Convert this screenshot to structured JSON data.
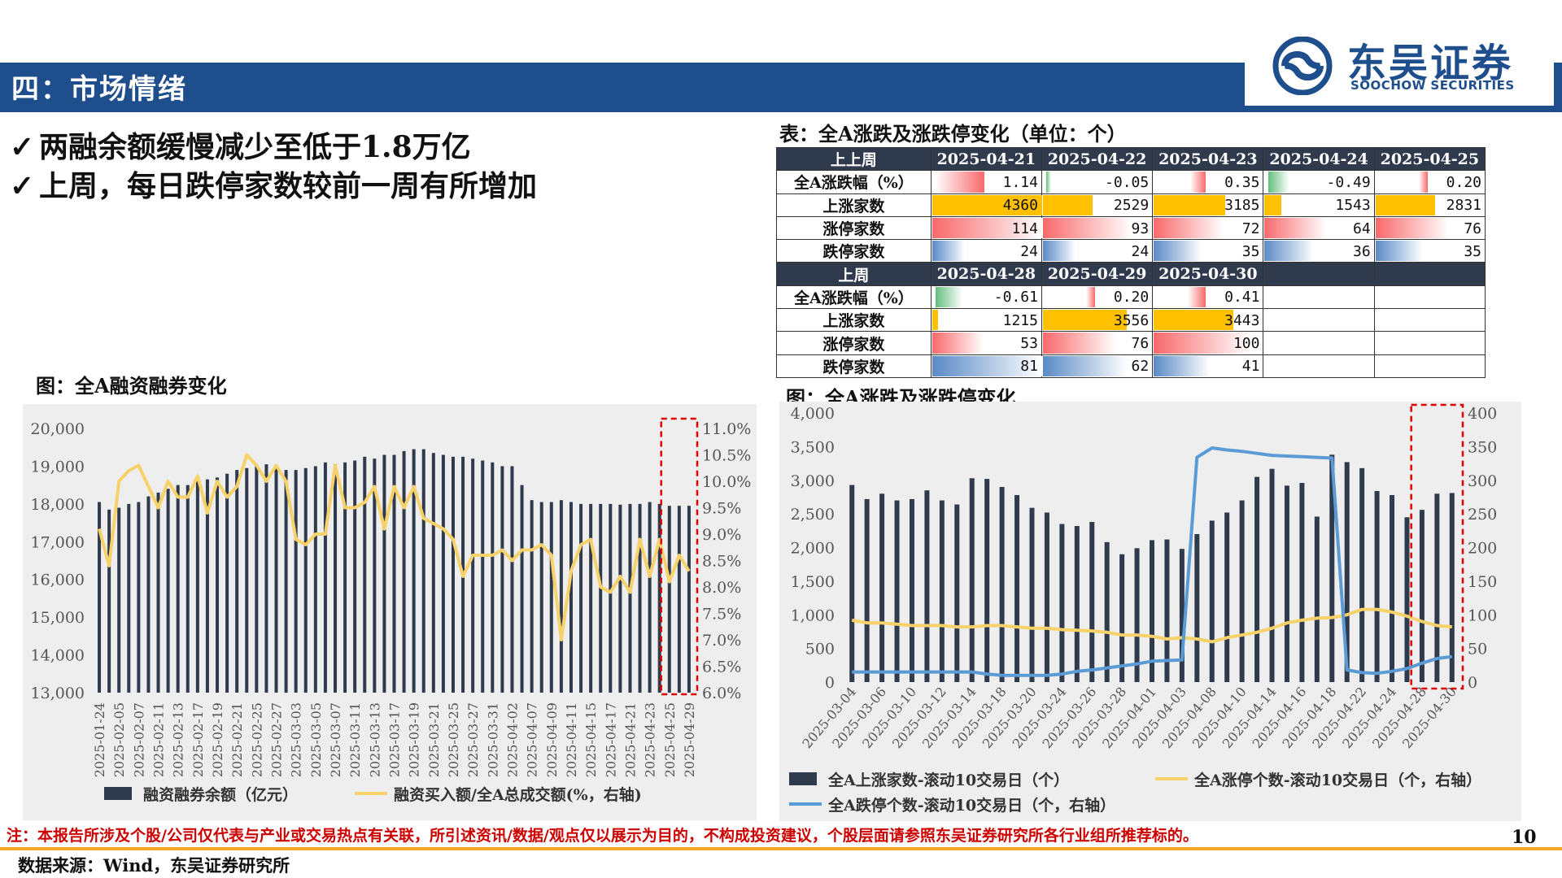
{
  "header": {
    "title": "四：市场情绪"
  },
  "logo": {
    "cn": "东吴证券",
    "en": "SOOCHOW SECURITIES"
  },
  "bullets": [
    {
      "check": "✓",
      "text": "两融余额缓慢减少至低于1.8万亿"
    },
    {
      "check": "✓",
      "text": "上周，每日跌停家数较前一周有所增加"
    }
  ],
  "table": {
    "caption": "表：全A涨跌及涨跌停变化（单位：个）",
    "blocks": [
      {
        "header": "上上周",
        "dates": [
          "2025-04-21",
          "2025-04-22",
          "2025-04-23",
          "2025-04-24",
          "2025-04-25"
        ],
        "rows": [
          {
            "label": "全A涨跌幅（%）",
            "values": [
              "1.14",
              "-0.05",
              "0.35",
              "-0.49",
              "0.20"
            ]
          },
          {
            "label": "上涨家数",
            "values": [
              "4360",
              "2529",
              "3185",
              "1543",
              "2831"
            ]
          },
          {
            "label": "涨停家数",
            "values": [
              "114",
              "93",
              "72",
              "64",
              "76"
            ]
          },
          {
            "label": "跌停家数",
            "values": [
              "24",
              "24",
              "35",
              "36",
              "35"
            ]
          }
        ]
      },
      {
        "header": "上周",
        "dates": [
          "2025-04-28",
          "2025-04-29",
          "2025-04-30",
          "",
          ""
        ],
        "rows": [
          {
            "label": "全A涨跌幅（%）",
            "values": [
              "-0.61",
              "0.20",
              "0.41",
              "",
              ""
            ]
          },
          {
            "label": "上涨家数",
            "values": [
              "1215",
              "3556",
              "3443",
              "",
              ""
            ]
          },
          {
            "label": "涨停家数",
            "values": [
              "53",
              "76",
              "100",
              "",
              ""
            ]
          },
          {
            "label": "跌停家数",
            "values": [
              "81",
              "62",
              "41",
              "",
              ""
            ]
          }
        ]
      }
    ]
  },
  "colors": {
    "bar": "#2f3a4d",
    "yellow_line": "#f7d26a",
    "blue_line": "#5b9bd5",
    "cell_yellow": "#ffc000",
    "cell_red": "#f8696b",
    "cell_green": "#63be7b",
    "cell_blue": "#5a8ac6",
    "highlight_box": "#e00000",
    "header_blue": "#1f4e8c"
  },
  "chart_data": [
    {
      "type": "bar+line",
      "title": "图：全A融资融券变化",
      "x": [
        "2025-01-24",
        "2025-01-27",
        "2025-02-05",
        "2025-02-06",
        "2025-02-07",
        "2025-02-10",
        "2025-02-11",
        "2025-02-12",
        "2025-02-13",
        "2025-02-14",
        "2025-02-17",
        "2025-02-18",
        "2025-02-19",
        "2025-02-20",
        "2025-02-21",
        "2025-02-24",
        "2025-02-25",
        "2025-02-26",
        "2025-02-27",
        "2025-02-28",
        "2025-03-03",
        "2025-03-04",
        "2025-03-05",
        "2025-03-06",
        "2025-03-07",
        "2025-03-10",
        "2025-03-11",
        "2025-03-12",
        "2025-03-13",
        "2025-03-14",
        "2025-03-17",
        "2025-03-18",
        "2025-03-19",
        "2025-03-20",
        "2025-03-21",
        "2025-03-24",
        "2025-03-25",
        "2025-03-26",
        "2025-03-27",
        "2025-03-28",
        "2025-03-31",
        "2025-04-01",
        "2025-04-02",
        "2025-04-03",
        "2025-04-07",
        "2025-04-08",
        "2025-04-09",
        "2025-04-10",
        "2025-04-11",
        "2025-04-14",
        "2025-04-15",
        "2025-04-16",
        "2025-04-17",
        "2025-04-18",
        "2025-04-21",
        "2025-04-22",
        "2025-04-23",
        "2025-04-24",
        "2025-04-25",
        "2025-04-28",
        "2025-04-29"
      ],
      "xtick_labels": [
        "2025-01-24",
        "2025-02-05",
        "2025-02-07",
        "2025-02-11",
        "2025-02-13",
        "2025-02-17",
        "2025-02-19",
        "2025-02-21",
        "2025-02-25",
        "2025-02-27",
        "2025-03-03",
        "2025-03-05",
        "2025-03-07",
        "2025-03-11",
        "2025-03-13",
        "2025-03-17",
        "2025-03-19",
        "2025-03-21",
        "2025-03-25",
        "2025-03-27",
        "2025-03-31",
        "2025-04-02",
        "2025-04-07",
        "2025-04-09",
        "2025-04-11",
        "2025-04-15",
        "2025-04-17",
        "2025-04-21",
        "2025-04-23",
        "2025-04-25",
        "2025-04-29"
      ],
      "series": [
        {
          "name": "融资融券余额（亿元）",
          "type": "bar",
          "axis": "left",
          "values": [
            18050,
            17850,
            17900,
            18000,
            18050,
            18200,
            18300,
            18400,
            18500,
            18500,
            18600,
            18650,
            18700,
            18800,
            18900,
            18950,
            19000,
            19050,
            18950,
            18900,
            18900,
            18950,
            19000,
            19100,
            19050,
            19100,
            19150,
            19250,
            19200,
            19300,
            19300,
            19400,
            19450,
            19450,
            19350,
            19300,
            19250,
            19250,
            19200,
            19150,
            19100,
            19000,
            19000,
            18500,
            18100,
            18050,
            18050,
            18100,
            18050,
            18000,
            18000,
            18000,
            18000,
            17980,
            18000,
            18000,
            18050,
            18000,
            17950,
            17950,
            17950
          ]
        },
        {
          "name": "融资买入额/全A总成交额(%，右轴)",
          "type": "line",
          "axis": "right",
          "values": [
            9.1,
            8.4,
            10.0,
            10.2,
            10.3,
            9.9,
            9.5,
            10.0,
            9.7,
            9.7,
            10.1,
            9.4,
            10.0,
            9.7,
            9.9,
            10.5,
            10.3,
            10.0,
            10.3,
            10.0,
            8.9,
            8.8,
            9.0,
            9.0,
            10.3,
            9.5,
            9.5,
            9.6,
            9.9,
            9.1,
            9.9,
            9.5,
            9.9,
            9.3,
            9.2,
            9.1,
            8.9,
            8.2,
            8.6,
            8.6,
            8.6,
            8.7,
            8.5,
            8.7,
            8.7,
            8.8,
            8.6,
            7.0,
            8.3,
            8.8,
            8.9,
            8.0,
            7.9,
            8.2,
            7.9,
            8.9,
            8.2,
            8.9,
            8.1,
            8.6,
            8.3
          ]
        }
      ],
      "ylim_left": [
        13000,
        20000
      ],
      "ylim_right": [
        6.0,
        11.0
      ],
      "yticks_left": [
        "13,000",
        "14,000",
        "15,000",
        "16,000",
        "17,000",
        "18,000",
        "19,000",
        "20,000"
      ],
      "yticks_right": [
        "6.0%",
        "6.5%",
        "7.0%",
        "7.5%",
        "8.0%",
        "8.5%",
        "9.0%",
        "9.5%",
        "10.0%",
        "10.5%",
        "11.0%"
      ],
      "legend": [
        "融资融券余额（亿元）",
        "融资买入额/全A总成交额(%，右轴)"
      ]
    },
    {
      "type": "bar+line",
      "title": "图：全A涨跌及涨跌停变化",
      "x": [
        "2025-03-04",
        "2025-03-05",
        "2025-03-06",
        "2025-03-07",
        "2025-03-10",
        "2025-03-11",
        "2025-03-12",
        "2025-03-13",
        "2025-03-14",
        "2025-03-17",
        "2025-03-18",
        "2025-03-19",
        "2025-03-20",
        "2025-03-21",
        "2025-03-24",
        "2025-03-25",
        "2025-03-26",
        "2025-03-27",
        "2025-03-28",
        "2025-03-31",
        "2025-04-01",
        "2025-04-02",
        "2025-04-03",
        "2025-04-07",
        "2025-04-08",
        "2025-04-09",
        "2025-04-10",
        "2025-04-11",
        "2025-04-14",
        "2025-04-15",
        "2025-04-16",
        "2025-04-17",
        "2025-04-18",
        "2025-04-21",
        "2025-04-22",
        "2025-04-23",
        "2025-04-24",
        "2025-04-25",
        "2025-04-28",
        "2025-04-29",
        "2025-04-30"
      ],
      "xtick_labels": [
        "2025-03-04",
        "2025-03-06",
        "2025-03-10",
        "2025-03-12",
        "2025-03-14",
        "2025-03-18",
        "2025-03-20",
        "2025-03-24",
        "2025-03-26",
        "2025-03-28",
        "2025-04-01",
        "2025-04-03",
        "2025-04-08",
        "2025-04-10",
        "2025-04-14",
        "2025-04-16",
        "2025-04-18",
        "2025-04-22",
        "2025-04-24",
        "2025-04-28",
        "2025-04-30"
      ],
      "series": [
        {
          "name": "全A上涨家数-滚动10交易日（个）",
          "type": "bar",
          "axis": "left",
          "values": [
            2930,
            2720,
            2800,
            2700,
            2720,
            2850,
            2700,
            2640,
            3030,
            3020,
            2900,
            2780,
            2590,
            2520,
            2350,
            2320,
            2380,
            2080,
            1900,
            1990,
            2110,
            2120,
            1980,
            2200,
            2400,
            2520,
            2700,
            3050,
            3170,
            2920,
            2960,
            2460,
            3380,
            3270,
            3180,
            2840,
            2780,
            2450,
            2560,
            2800,
            2810
          ]
        },
        {
          "name": "全A涨停个数-滚动10交易日（个，右轴）",
          "type": "line",
          "axis": "right",
          "values": [
            92,
            88,
            88,
            86,
            84,
            84,
            84,
            82,
            82,
            84,
            84,
            82,
            80,
            80,
            78,
            77,
            76,
            74,
            70,
            70,
            68,
            64,
            66,
            64,
            60,
            66,
            70,
            74,
            80,
            88,
            92,
            95,
            96,
            100,
            108,
            108,
            104,
            98,
            90,
            84,
            82
          ]
        },
        {
          "name": "全A跌停个数-滚动10交易日（个，右轴）",
          "type": "line",
          "axis": "right",
          "values": [
            15,
            15,
            15,
            15,
            15,
            15,
            15,
            15,
            15,
            12,
            10,
            10,
            10,
            10,
            12,
            16,
            18,
            21,
            24,
            27,
            31,
            32,
            33,
            334,
            348,
            345,
            343,
            340,
            337,
            336,
            335,
            334,
            333,
            18,
            14,
            13,
            16,
            20,
            28,
            35,
            38
          ]
        }
      ],
      "ylim_left": [
        0,
        4000
      ],
      "ylim_right": [
        0,
        400
      ],
      "yticks_left": [
        "0",
        "500",
        "1,000",
        "1,500",
        "2,000",
        "2,500",
        "3,000",
        "3,500",
        "4,000"
      ],
      "yticks_right": [
        "0",
        "50",
        "100",
        "150",
        "200",
        "250",
        "300",
        "350",
        "400"
      ],
      "legend": [
        "全A上涨家数-滚动10交易日（个）",
        "全A涨停个数-滚动10交易日（个，右轴）",
        "全A跌停个数-滚动10交易日（个，右轴）"
      ]
    }
  ],
  "footer": {
    "note": "注：本报告所涉及个股/公司仅代表与产业或交易热点有关联，所引述资讯/数据/观点仅以展示为目的，不构成投资建议，个股层面请参照东吴证券研究所各行业组所推荐标的。",
    "page": "10",
    "source": "数据来源：Wind，东吴证券研究所"
  }
}
